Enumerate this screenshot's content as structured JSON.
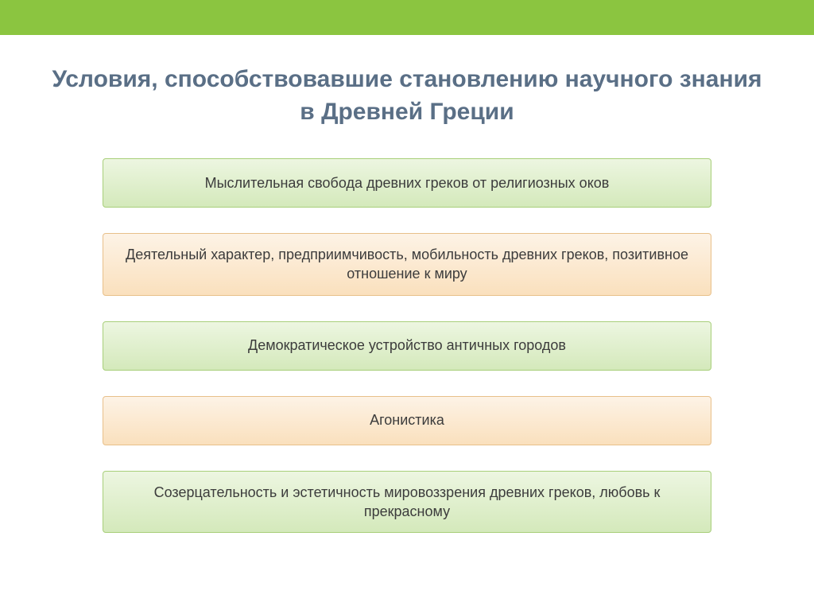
{
  "topBar": {
    "background_color": "#8bc540"
  },
  "title": {
    "text": "Условия, способствовавшие становлению научного знания в Древней Греции",
    "color": "#5a6f86",
    "fontsize": 30
  },
  "boxes": [
    {
      "text": "Мыслительная свобода древних греков от религиозных оков",
      "variant": "green"
    },
    {
      "text": "Деятельный характер, предприимчивость, мобильность древних греков, позитивное отношение к миру",
      "variant": "orange"
    },
    {
      "text": "Демократическое устройство античных городов",
      "variant": "green"
    },
    {
      "text": "Агонистика",
      "variant": "orange"
    },
    {
      "text": "Созерцательность и эстетичность мировоззрения древних греков, любовь к прекрасному",
      "variant": "green"
    }
  ],
  "styling": {
    "box_fontsize": 18,
    "box_text_color": "#3c3c3c",
    "green": {
      "gradient_top": "#edf6e1",
      "gradient_bottom": "#d4e9bb",
      "border_color": "#a8cf7a"
    },
    "orange": {
      "gradient_top": "#fdf3e6",
      "gradient_bottom": "#fae0bd",
      "border_color": "#e8c08a"
    }
  }
}
